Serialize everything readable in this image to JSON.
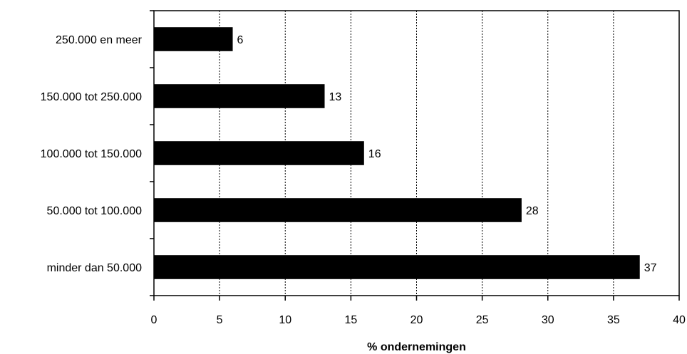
{
  "chart_data": {
    "type": "bar",
    "orientation": "horizontal",
    "categories": [
      "250.000 en meer",
      "150.000 tot 250.000",
      "100.000 tot 150.000",
      "50.000 tot 100.000",
      "minder dan 50.000"
    ],
    "values": [
      6,
      13,
      16,
      28,
      37
    ],
    "data_labels": [
      "6",
      "13",
      "16",
      "28",
      "37"
    ],
    "title": "",
    "xlabel": "% ondernemingen",
    "ylabel": "",
    "xlim": [
      0,
      40
    ],
    "x_ticks": [
      0,
      5,
      10,
      15,
      20,
      25,
      30,
      35,
      40
    ],
    "grid": "vertical dashed",
    "legend": "none",
    "bar_color": "#000000"
  }
}
